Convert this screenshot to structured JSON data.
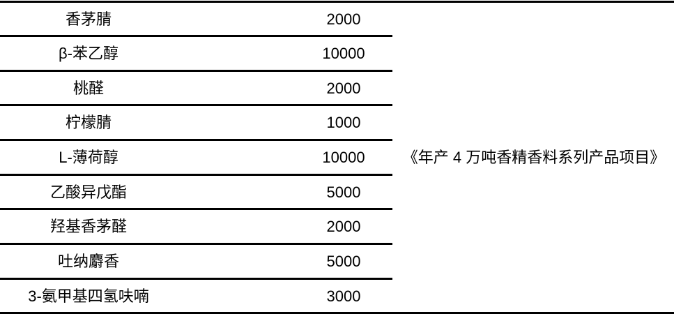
{
  "rows": [
    {
      "name": "香茅腈",
      "value": "2000"
    },
    {
      "name": "β-苯乙醇",
      "value": "10000"
    },
    {
      "name": "桃醛",
      "value": "2000"
    },
    {
      "name": "柠檬腈",
      "value": "1000"
    },
    {
      "name": "L-薄荷醇",
      "value": "10000"
    },
    {
      "name": "乙酸异戊酯",
      "value": "5000"
    },
    {
      "name": "羟基香茅醛",
      "value": "2000"
    },
    {
      "name": "吐纳麝香",
      "value": "5000"
    },
    {
      "name": "3-氨甲基四氢呋喃",
      "value": "3000"
    }
  ],
  "source": "《年产 4 万吨香精香料系列产品项目》"
}
